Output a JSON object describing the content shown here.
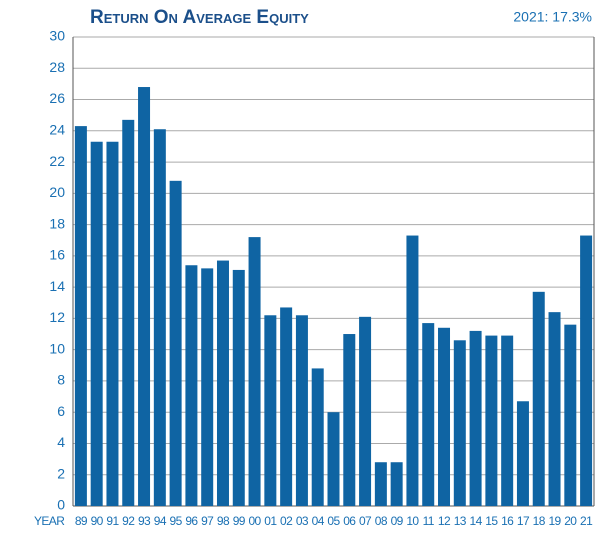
{
  "chart_data": {
    "type": "bar",
    "title": "Return On Average Equity",
    "subtitle": "2021: 17.3%",
    "x_label": "YEAR",
    "categories": [
      "89",
      "90",
      "91",
      "92",
      "93",
      "94",
      "95",
      "96",
      "97",
      "98",
      "99",
      "00",
      "01",
      "02",
      "03",
      "04",
      "05",
      "06",
      "07",
      "08",
      "09",
      "10",
      "11",
      "12",
      "13",
      "14",
      "15",
      "16",
      "17",
      "18",
      "19",
      "20",
      "21"
    ],
    "values": [
      24.3,
      23.3,
      23.3,
      24.7,
      26.8,
      24.1,
      20.8,
      15.4,
      15.2,
      15.7,
      15.1,
      17.2,
      12.2,
      12.7,
      12.2,
      8.8,
      6.0,
      11.0,
      12.1,
      2.8,
      2.8,
      17.3,
      11.7,
      11.4,
      10.6,
      11.2,
      10.9,
      10.9,
      6.7,
      13.7,
      12.4,
      11.6,
      17.3
    ],
    "color": "#0f64a3",
    "ylim": [
      0,
      30
    ],
    "yticks": [
      0,
      2,
      4,
      6,
      8,
      10,
      12,
      14,
      16,
      18,
      20,
      22,
      24,
      26,
      28,
      30
    ],
    "grid": true
  }
}
